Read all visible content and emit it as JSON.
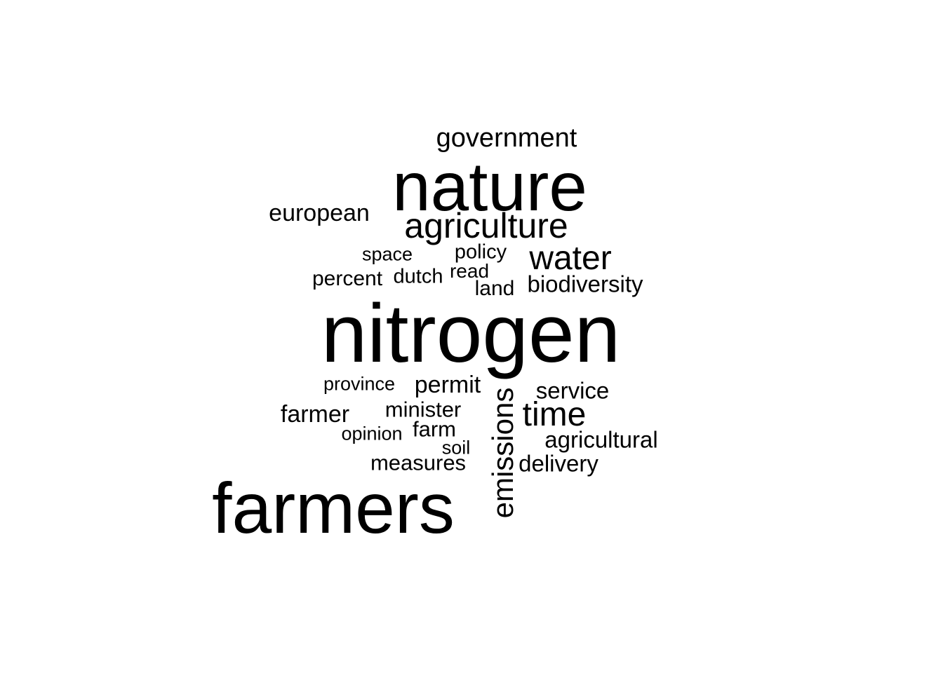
{
  "word_cloud": {
    "text_color": "#000000",
    "background_color": "#ffffff",
    "words": [
      {
        "text": "nitrogen",
        "weight": 1.0
      },
      {
        "text": "farmers",
        "weight": 0.86
      },
      {
        "text": "nature",
        "weight": 0.83
      },
      {
        "text": "agriculture",
        "weight": 0.45
      },
      {
        "text": "emissions",
        "weight": 0.42
      },
      {
        "text": "water",
        "weight": 0.42
      },
      {
        "text": "time",
        "weight": 0.42
      },
      {
        "text": "government",
        "weight": 0.34
      },
      {
        "text": "european",
        "weight": 0.32
      },
      {
        "text": "permit",
        "weight": 0.32
      },
      {
        "text": "farmer",
        "weight": 0.32
      },
      {
        "text": "biodiversity",
        "weight": 0.31
      },
      {
        "text": "service",
        "weight": 0.31
      },
      {
        "text": "agricultural",
        "weight": 0.31
      },
      {
        "text": "delivery",
        "weight": 0.31
      },
      {
        "text": "minister",
        "weight": 0.29
      },
      {
        "text": "farm",
        "weight": 0.29
      },
      {
        "text": "measures",
        "weight": 0.29
      },
      {
        "text": "percent",
        "weight": 0.28
      },
      {
        "text": "land",
        "weight": 0.28
      },
      {
        "text": "dutch",
        "weight": 0.27
      },
      {
        "text": "policy",
        "weight": 0.27
      },
      {
        "text": "read",
        "weight": 0.26
      },
      {
        "text": "space",
        "weight": 0.25
      },
      {
        "text": "province",
        "weight": 0.25
      },
      {
        "text": "opinion",
        "weight": 0.25
      },
      {
        "text": "soil",
        "weight": 0.25
      }
    ]
  }
}
